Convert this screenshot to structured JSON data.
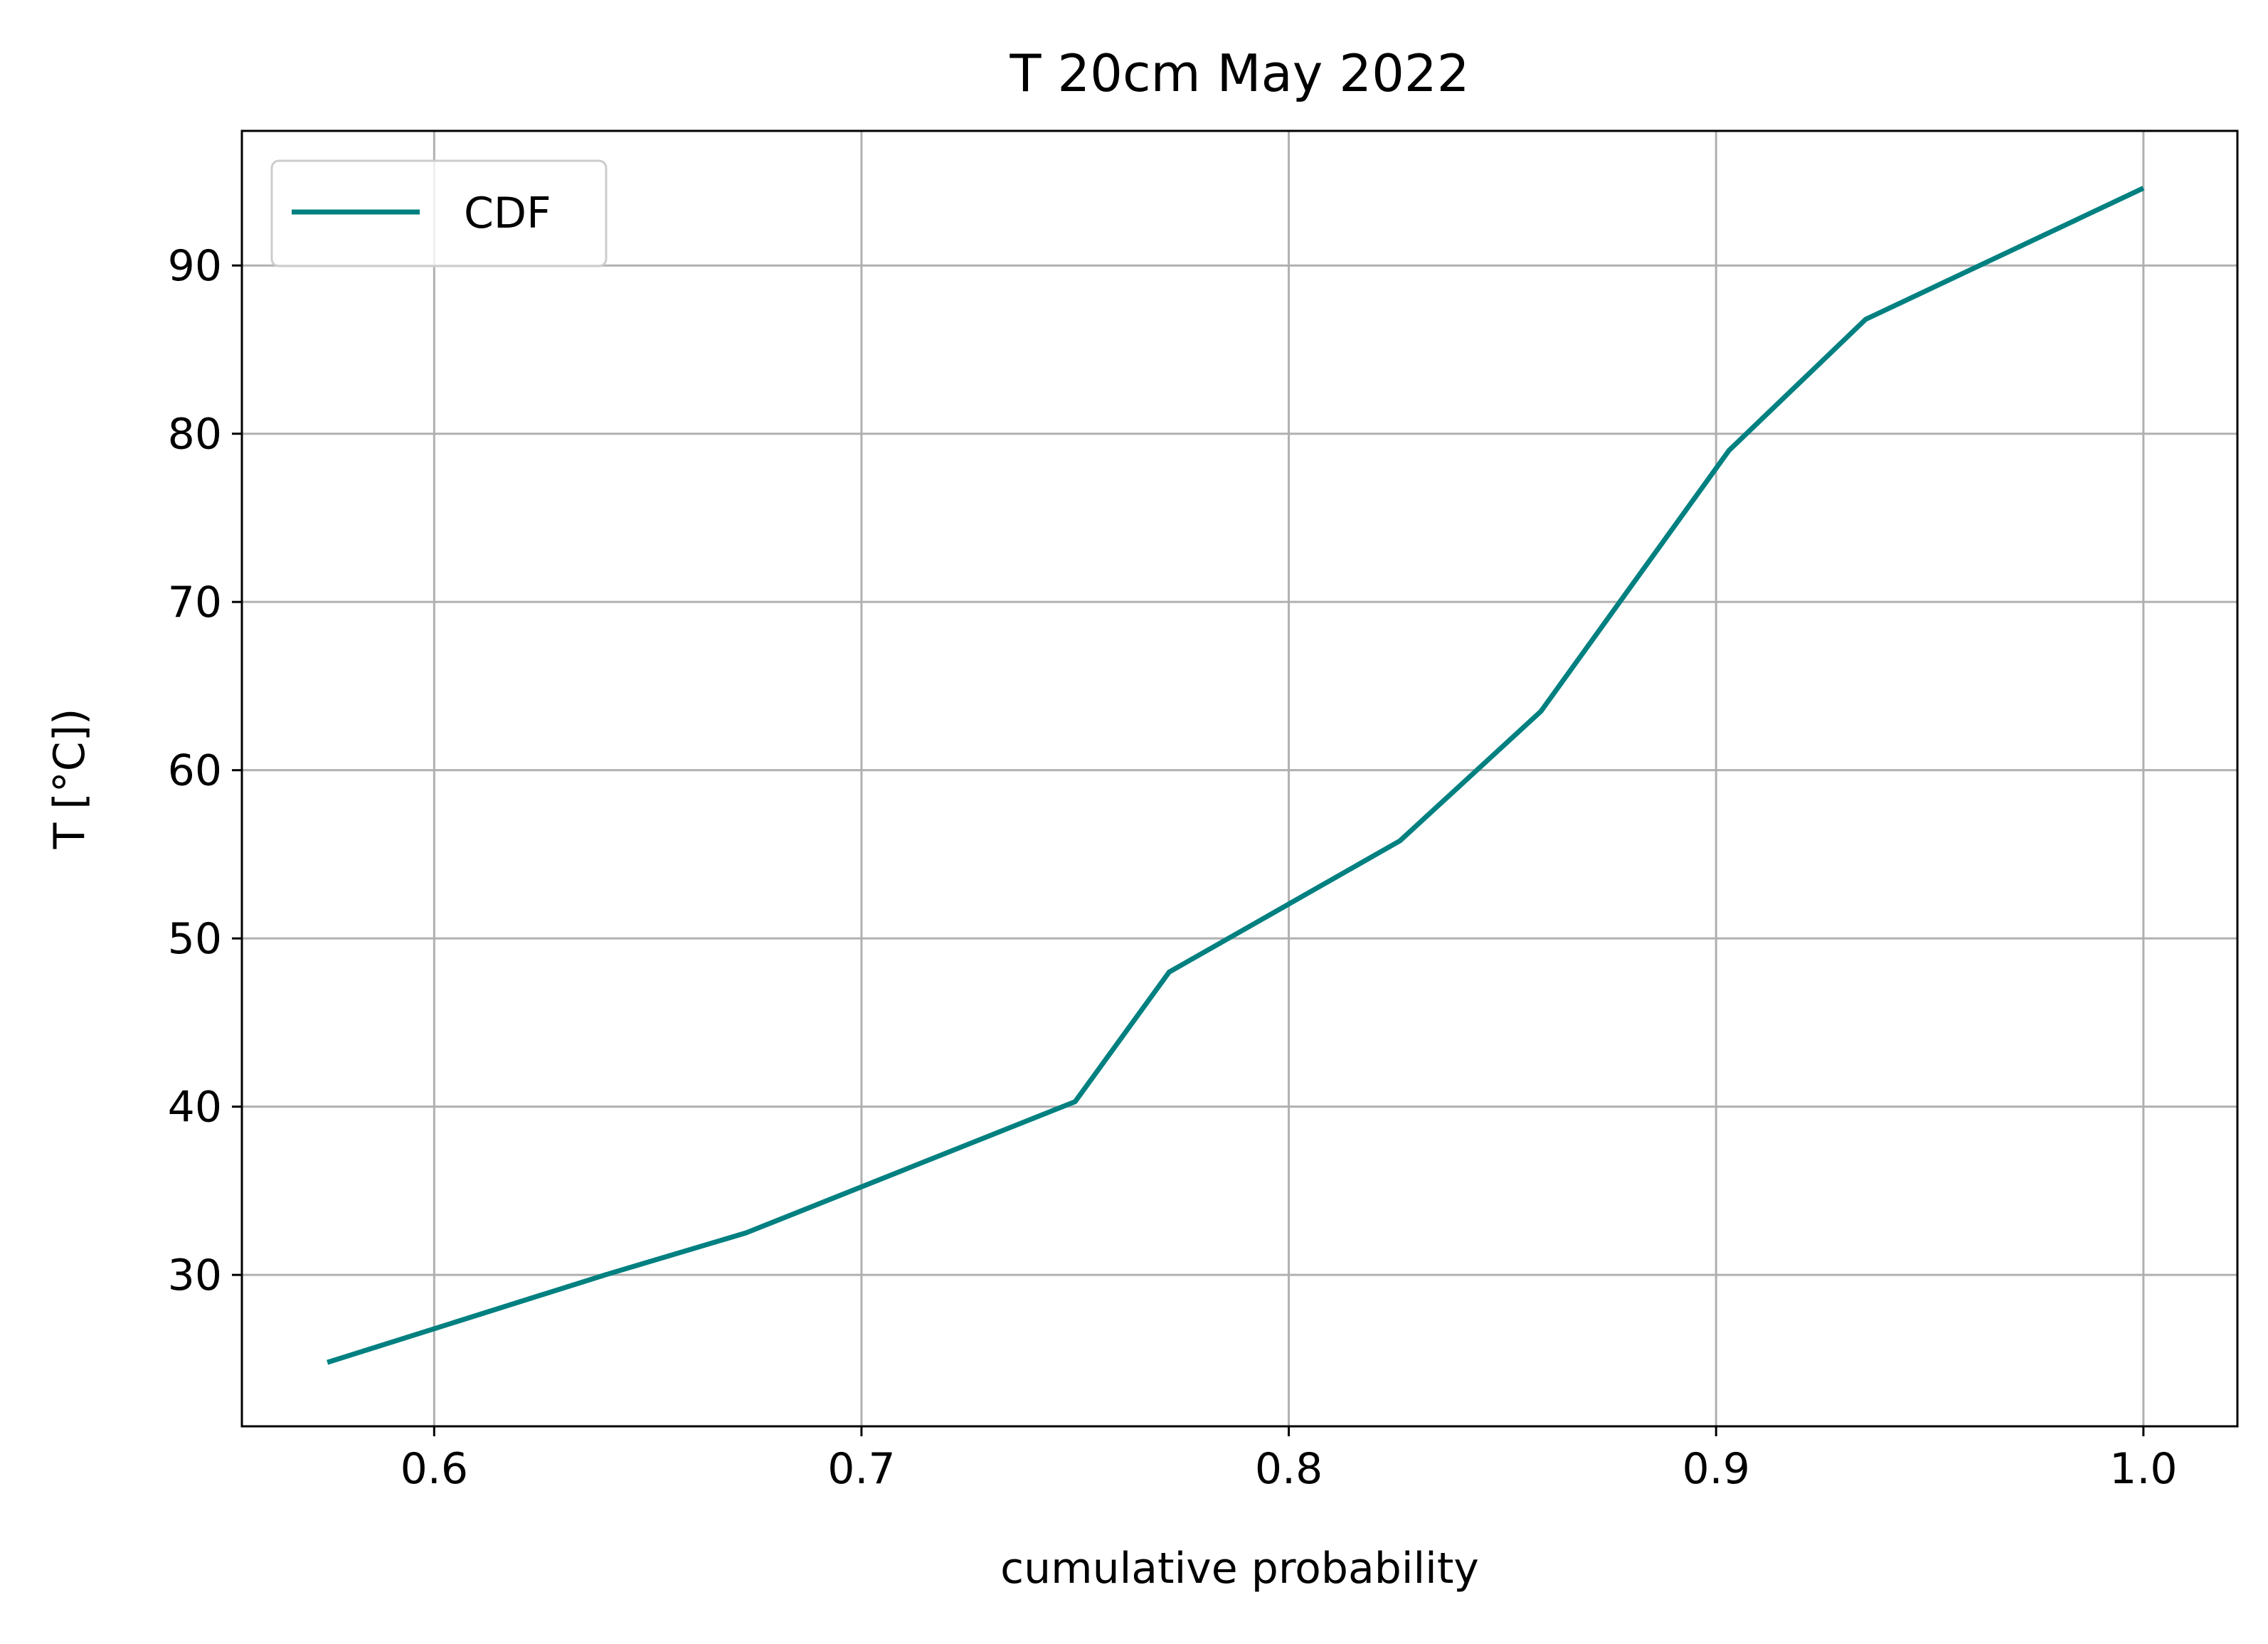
{
  "chart_data": {
    "type": "line",
    "title": "T 20cm May 2022",
    "xlabel": "cumulative probability",
    "ylabel": "T [°C])",
    "xlim": [
      0.555,
      1.022
    ],
    "ylim": [
      21.0,
      98.0
    ],
    "xticks": [
      0.6,
      0.7,
      0.8,
      0.9,
      1.0
    ],
    "xtick_labels": [
      "0.6",
      "0.7",
      "0.8",
      "0.9",
      "1.0"
    ],
    "yticks": [
      30,
      40,
      50,
      60,
      70,
      80,
      90
    ],
    "ytick_labels": [
      "30",
      "40",
      "50",
      "60",
      "70",
      "80",
      "90"
    ],
    "grid": true,
    "legend": "upper left",
    "series": [
      {
        "name": "CDF",
        "color": "#008080",
        "x": [
          0.575,
          0.64,
          0.673,
          0.75,
          0.772,
          0.826,
          0.859,
          0.903,
          0.935,
          1.0
        ],
        "y": [
          24.8,
          30.0,
          32.5,
          40.3,
          48.0,
          55.8,
          63.5,
          79.0,
          86.8,
          94.6
        ]
      }
    ]
  }
}
